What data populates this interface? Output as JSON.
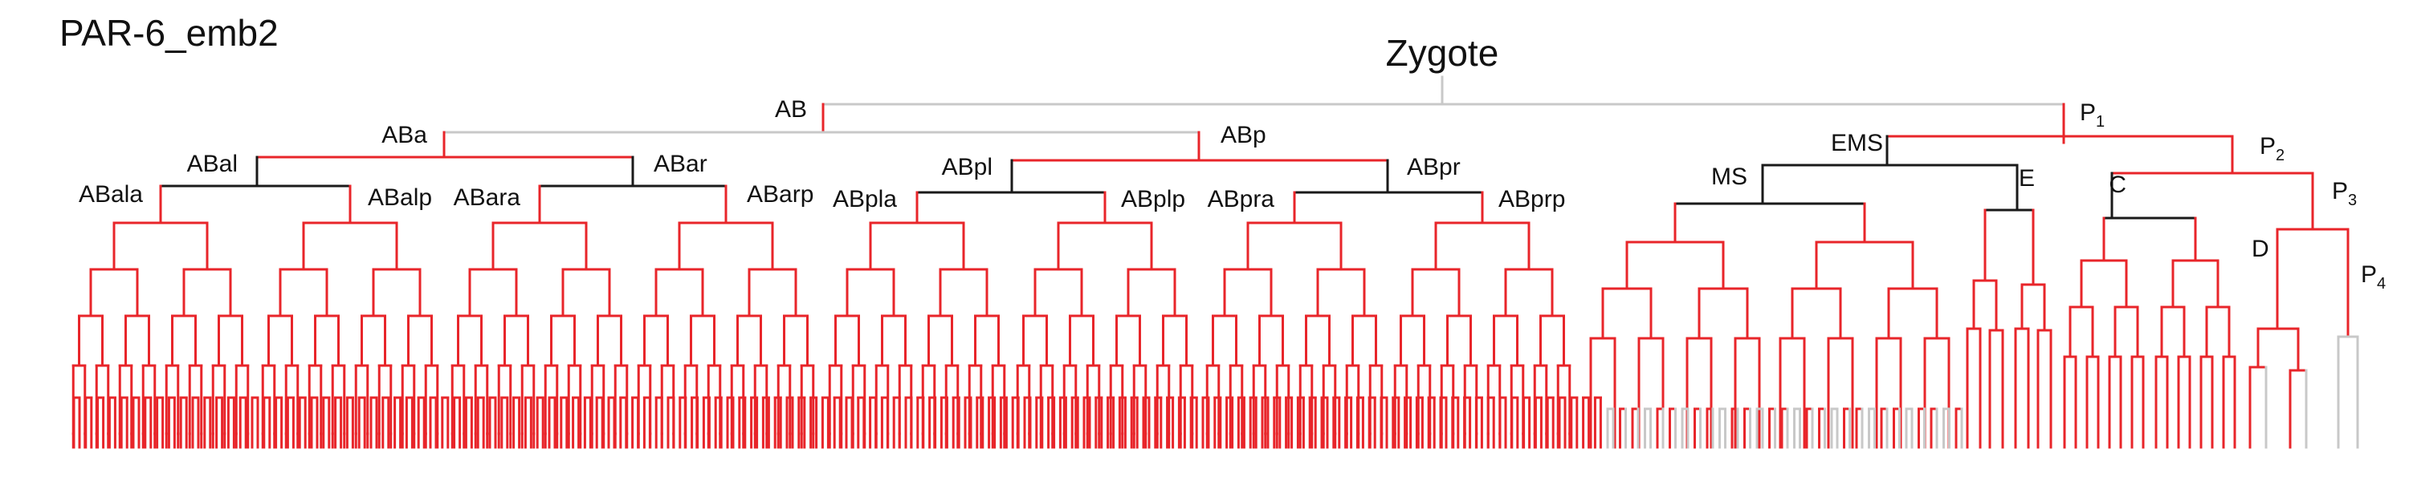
{
  "title": "PAR-6_emb2",
  "root_label": "Zygote",
  "colors": {
    "expressed": "#e8252a",
    "not_expressed": "#1a1a1a",
    "not_imaged": "#c8c8c8",
    "label": "#111111"
  },
  "legend": [],
  "cells": {
    "AB": "AB",
    "P1_base": "P",
    "P1_sub": "1",
    "ABa": "ABa",
    "ABp": "ABp",
    "ABal": "ABal",
    "ABar": "ABar",
    "ABpl": "ABpl",
    "ABpr": "ABpr",
    "ABala": "ABala",
    "ABalp": "ABalp",
    "ABara": "ABara",
    "ABarp": "ABarp",
    "ABpla": "ABpla",
    "ABplp": "ABplp",
    "ABpra": "ABpra",
    "ABprp": "ABprp",
    "EMS": "EMS",
    "MS": "MS",
    "E": "E",
    "P2_base": "P",
    "P2_sub": "2",
    "C": "C",
    "P3_base": "P",
    "P3_sub": "3",
    "D": "D",
    "P4_base": "P",
    "P4_sub": "4"
  }
}
